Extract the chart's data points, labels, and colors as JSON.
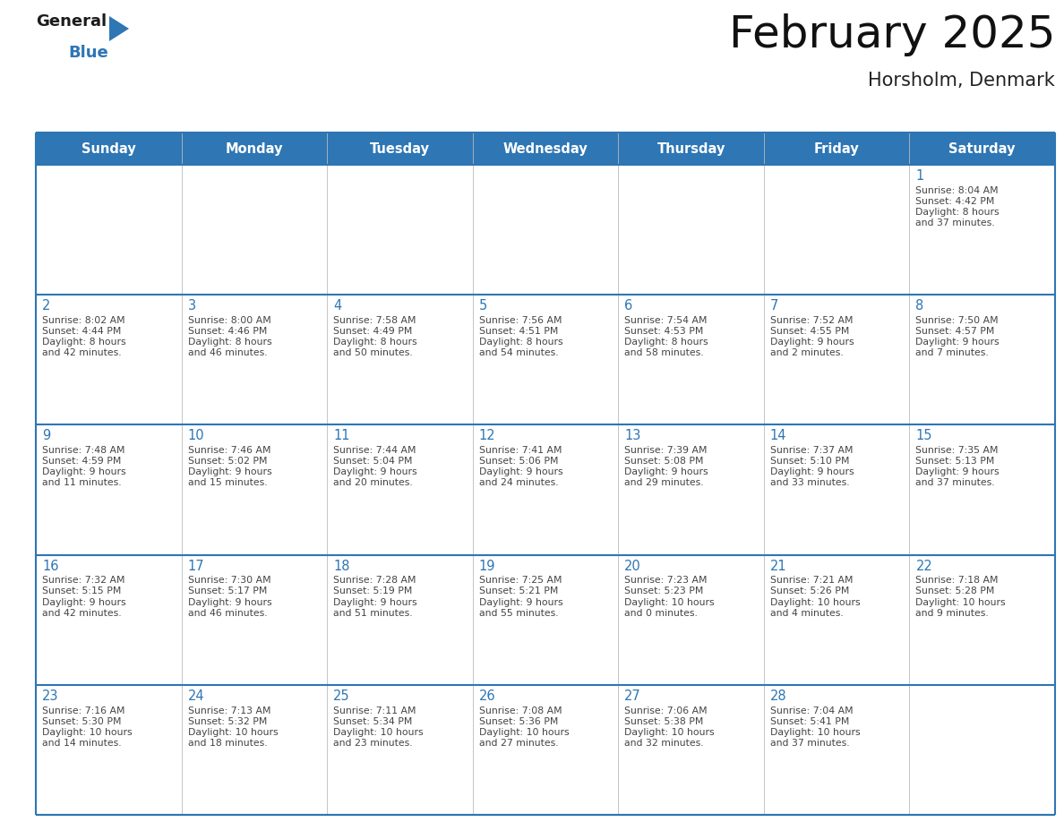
{
  "title": "February 2025",
  "subtitle": "Horsholm, Denmark",
  "header_bg": "#2E76B4",
  "header_text_color": "#FFFFFF",
  "cell_bg": "#FFFFFF",
  "day_number_color": "#2E76B4",
  "text_color": "#444444",
  "line_color": "#2E76B4",
  "days_of_week": [
    "Sunday",
    "Monday",
    "Tuesday",
    "Wednesday",
    "Thursday",
    "Friday",
    "Saturday"
  ],
  "weeks": [
    [
      {
        "day": null
      },
      {
        "day": null
      },
      {
        "day": null
      },
      {
        "day": null
      },
      {
        "day": null
      },
      {
        "day": null
      },
      {
        "day": 1,
        "sunrise": "8:04 AM",
        "sunset": "4:42 PM",
        "daylight": "8 hours and 37 minutes"
      }
    ],
    [
      {
        "day": 2,
        "sunrise": "8:02 AM",
        "sunset": "4:44 PM",
        "daylight": "8 hours and 42 minutes"
      },
      {
        "day": 3,
        "sunrise": "8:00 AM",
        "sunset": "4:46 PM",
        "daylight": "8 hours and 46 minutes"
      },
      {
        "day": 4,
        "sunrise": "7:58 AM",
        "sunset": "4:49 PM",
        "daylight": "8 hours and 50 minutes"
      },
      {
        "day": 5,
        "sunrise": "7:56 AM",
        "sunset": "4:51 PM",
        "daylight": "8 hours and 54 minutes"
      },
      {
        "day": 6,
        "sunrise": "7:54 AM",
        "sunset": "4:53 PM",
        "daylight": "8 hours and 58 minutes"
      },
      {
        "day": 7,
        "sunrise": "7:52 AM",
        "sunset": "4:55 PM",
        "daylight": "9 hours and 2 minutes"
      },
      {
        "day": 8,
        "sunrise": "7:50 AM",
        "sunset": "4:57 PM",
        "daylight": "9 hours and 7 minutes"
      }
    ],
    [
      {
        "day": 9,
        "sunrise": "7:48 AM",
        "sunset": "4:59 PM",
        "daylight": "9 hours and 11 minutes"
      },
      {
        "day": 10,
        "sunrise": "7:46 AM",
        "sunset": "5:02 PM",
        "daylight": "9 hours and 15 minutes"
      },
      {
        "day": 11,
        "sunrise": "7:44 AM",
        "sunset": "5:04 PM",
        "daylight": "9 hours and 20 minutes"
      },
      {
        "day": 12,
        "sunrise": "7:41 AM",
        "sunset": "5:06 PM",
        "daylight": "9 hours and 24 minutes"
      },
      {
        "day": 13,
        "sunrise": "7:39 AM",
        "sunset": "5:08 PM",
        "daylight": "9 hours and 29 minutes"
      },
      {
        "day": 14,
        "sunrise": "7:37 AM",
        "sunset": "5:10 PM",
        "daylight": "9 hours and 33 minutes"
      },
      {
        "day": 15,
        "sunrise": "7:35 AM",
        "sunset": "5:13 PM",
        "daylight": "9 hours and 37 minutes"
      }
    ],
    [
      {
        "day": 16,
        "sunrise": "7:32 AM",
        "sunset": "5:15 PM",
        "daylight": "9 hours and 42 minutes"
      },
      {
        "day": 17,
        "sunrise": "7:30 AM",
        "sunset": "5:17 PM",
        "daylight": "9 hours and 46 minutes"
      },
      {
        "day": 18,
        "sunrise": "7:28 AM",
        "sunset": "5:19 PM",
        "daylight": "9 hours and 51 minutes"
      },
      {
        "day": 19,
        "sunrise": "7:25 AM",
        "sunset": "5:21 PM",
        "daylight": "9 hours and 55 minutes"
      },
      {
        "day": 20,
        "sunrise": "7:23 AM",
        "sunset": "5:23 PM",
        "daylight": "10 hours and 0 minutes"
      },
      {
        "day": 21,
        "sunrise": "7:21 AM",
        "sunset": "5:26 PM",
        "daylight": "10 hours and 4 minutes"
      },
      {
        "day": 22,
        "sunrise": "7:18 AM",
        "sunset": "5:28 PM",
        "daylight": "10 hours and 9 minutes"
      }
    ],
    [
      {
        "day": 23,
        "sunrise": "7:16 AM",
        "sunset": "5:30 PM",
        "daylight": "10 hours and 14 minutes"
      },
      {
        "day": 24,
        "sunrise": "7:13 AM",
        "sunset": "5:32 PM",
        "daylight": "10 hours and 18 minutes"
      },
      {
        "day": 25,
        "sunrise": "7:11 AM",
        "sunset": "5:34 PM",
        "daylight": "10 hours and 23 minutes"
      },
      {
        "day": 26,
        "sunrise": "7:08 AM",
        "sunset": "5:36 PM",
        "daylight": "10 hours and 27 minutes"
      },
      {
        "day": 27,
        "sunrise": "7:06 AM",
        "sunset": "5:38 PM",
        "daylight": "10 hours and 32 minutes"
      },
      {
        "day": 28,
        "sunrise": "7:04 AM",
        "sunset": "5:41 PM",
        "daylight": "10 hours and 37 minutes"
      },
      {
        "day": null
      }
    ]
  ]
}
